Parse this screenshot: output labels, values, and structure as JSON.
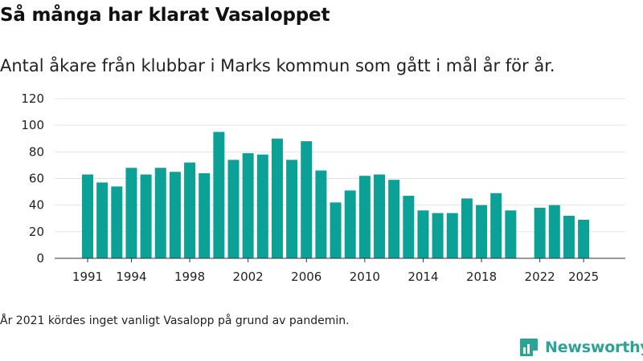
{
  "title": "Så många har klarat Vasaloppet",
  "subtitle": "Antal åkare från klubbar i Marks kommun som gått i mål år för år.",
  "footnote": "År 2021 kördes inget vanligt Vasalopp på grund av pandemin.",
  "logo_text": "Newsworthy",
  "colors": {
    "bar": "#0ca197",
    "grid": "#e3e3e3",
    "axis": "#333333",
    "brand": "#2ba397"
  },
  "chart_data": {
    "type": "bar",
    "title": "Så många har klarat Vasaloppet",
    "xlabel": "",
    "ylabel": "",
    "ylim": [
      0,
      120
    ],
    "yticks": [
      0,
      20,
      40,
      60,
      80,
      100,
      120
    ],
    "xtick_labels": [
      "1991",
      "1994",
      "1998",
      "2002",
      "2006",
      "2010",
      "2014",
      "2018",
      "2022",
      "2025"
    ],
    "categories": [
      1991,
      1992,
      1993,
      1994,
      1995,
      1996,
      1997,
      1998,
      1999,
      2000,
      2001,
      2002,
      2003,
      2004,
      2005,
      2006,
      2007,
      2008,
      2009,
      2010,
      2011,
      2012,
      2013,
      2014,
      2015,
      2016,
      2017,
      2018,
      2019,
      2020,
      2021,
      2022,
      2023,
      2024,
      2025
    ],
    "values": [
      63,
      57,
      54,
      68,
      63,
      68,
      65,
      72,
      64,
      95,
      74,
      79,
      78,
      90,
      74,
      88,
      66,
      42,
      51,
      62,
      63,
      59,
      47,
      36,
      34,
      34,
      45,
      40,
      49,
      36,
      null,
      38,
      40,
      32,
      29
    ],
    "grid": true
  }
}
